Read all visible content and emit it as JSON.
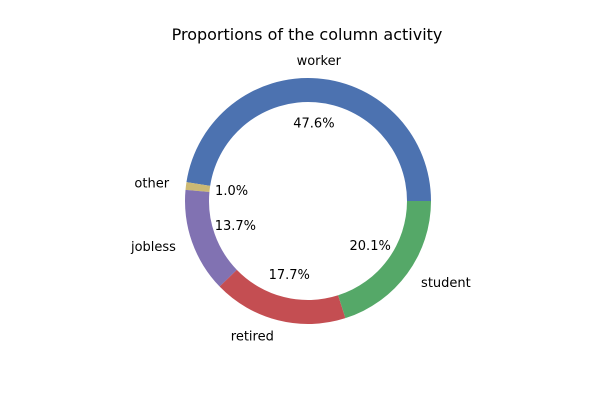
{
  "chart_data": {
    "type": "pie",
    "title": "Proportions of the column activity",
    "categories": [
      "worker",
      "other",
      "jobless",
      "retired",
      "student"
    ],
    "values": [
      47.6,
      1.0,
      13.7,
      17.7,
      20.1
    ],
    "value_labels": [
      "47.6%",
      "1.0%",
      "13.7%",
      "17.7%",
      "20.1%"
    ],
    "colors": [
      "#4c72b0",
      "#ccb974",
      "#8172b2",
      "#c44e52",
      "#55a868"
    ],
    "donut": true,
    "legend": "none"
  }
}
